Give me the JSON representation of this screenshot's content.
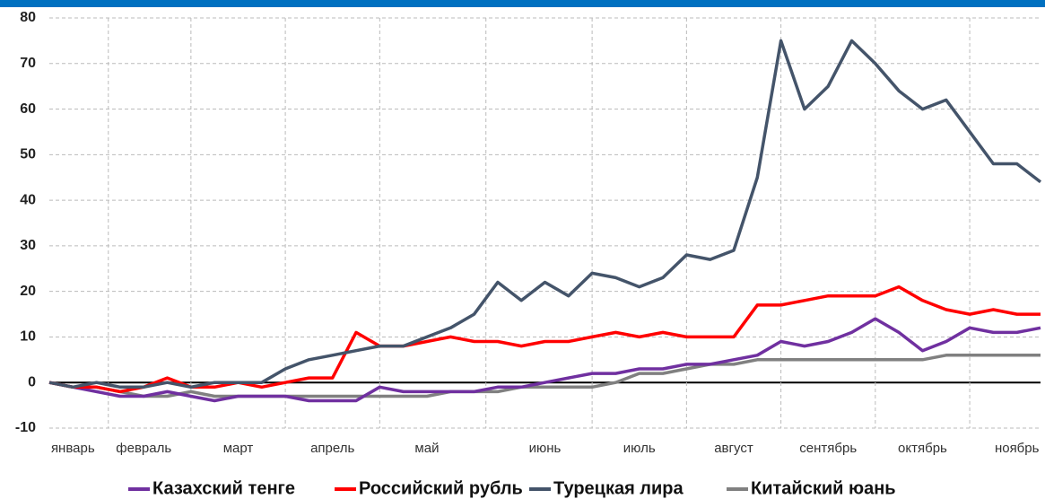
{
  "chart_data": {
    "type": "line",
    "categories": [
      null,
      "январь",
      null,
      null,
      "февраль",
      null,
      null,
      null,
      "март",
      null,
      null,
      null,
      "апрель",
      null,
      null,
      null,
      "май",
      null,
      null,
      null,
      null,
      "июнь",
      null,
      null,
      null,
      "июль",
      null,
      null,
      null,
      "август",
      null,
      null,
      null,
      "сентябрь",
      null,
      null,
      null,
      "октябрь",
      null,
      null,
      null,
      "ноябрь",
      null
    ],
    "series": [
      {
        "name": "Казахский тенге",
        "color": "#7030a0",
        "values": [
          0,
          -1,
          -2,
          -3,
          -3,
          -2,
          -3,
          -4,
          -3,
          -3,
          -3,
          -4,
          -4,
          -4,
          -1,
          -2,
          -2,
          -2,
          -2,
          -1,
          -1,
          0,
          1,
          2,
          2,
          3,
          3,
          4,
          4,
          5,
          6,
          9,
          8,
          9,
          11,
          14,
          11,
          7,
          9,
          12,
          11,
          11,
          12
        ]
      },
      {
        "name": "Российский рубль",
        "color": "#ff0000",
        "values": [
          0,
          -1,
          -1,
          -2,
          -1,
          1,
          -1,
          -1,
          0,
          -1,
          0,
          1,
          1,
          11,
          8,
          8,
          9,
          10,
          9,
          9,
          8,
          9,
          9,
          10,
          11,
          10,
          11,
          10,
          10,
          10,
          17,
          17,
          18,
          19,
          19,
          19,
          21,
          18,
          16,
          15,
          16,
          15,
          15
        ]
      },
      {
        "name": "Турецкая лира",
        "color": "#44546a",
        "values": [
          0,
          -1,
          0,
          -1,
          -1,
          0,
          -1,
          0,
          0,
          0,
          3,
          5,
          6,
          7,
          8,
          8,
          10,
          12,
          15,
          22,
          18,
          22,
          19,
          24,
          23,
          21,
          23,
          28,
          27,
          29,
          45,
          75,
          60,
          65,
          75,
          70,
          64,
          60,
          62,
          55,
          48,
          48,
          44
        ]
      },
      {
        "name": "Китайский юань",
        "color": "#808080",
        "values": [
          0,
          -1,
          -1,
          -2,
          -3,
          -3,
          -2,
          -3,
          -3,
          -3,
          -3,
          -3,
          -3,
          -3,
          -3,
          -3,
          -3,
          -2,
          -2,
          -2,
          -1,
          -1,
          -1,
          -1,
          0,
          2,
          2,
          3,
          4,
          4,
          5,
          5,
          5,
          5,
          5,
          5,
          5,
          5,
          6,
          6,
          6,
          6,
          6
        ]
      }
    ],
    "ylim": [
      -10,
      80
    ],
    "yticks": [
      -10,
      0,
      10,
      20,
      30,
      40,
      50,
      60,
      70,
      80
    ],
    "grid": true
  }
}
